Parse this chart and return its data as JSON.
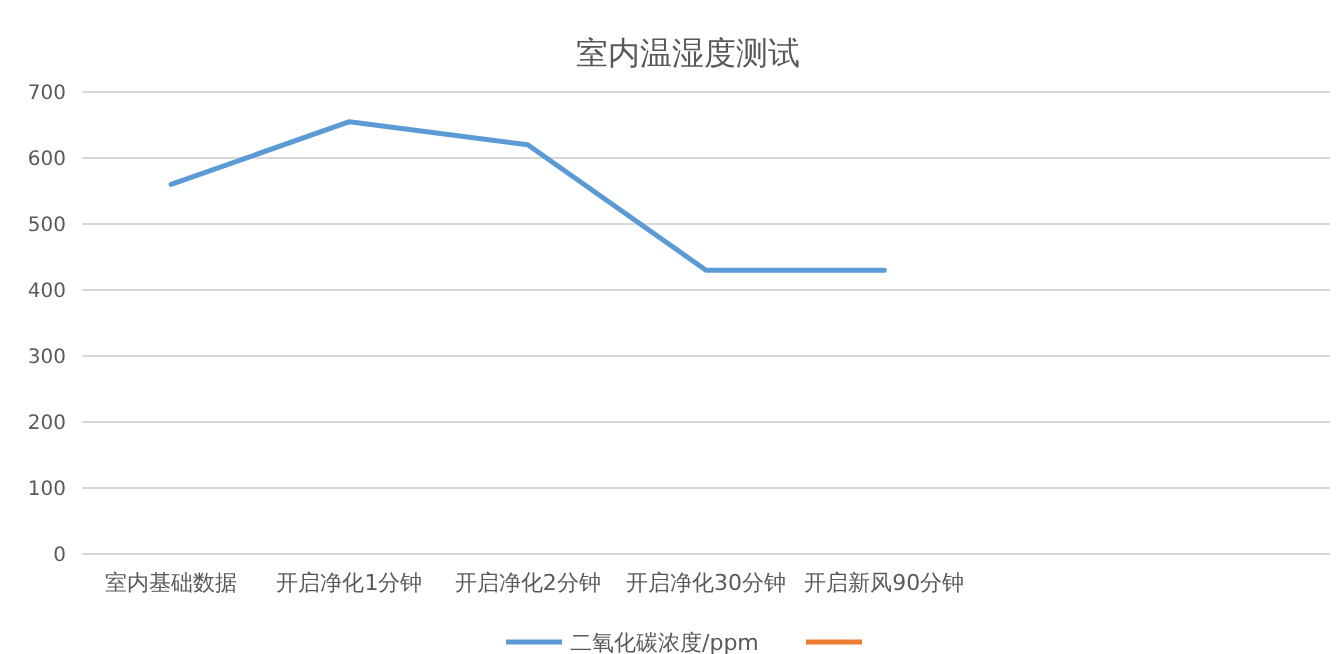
{
  "chart_data": {
    "type": "line",
    "title": "室内温湿度测试",
    "categories": [
      "室内基础数据",
      "开启净化1分钟",
      "开启净化2分钟",
      "开启净化30分钟",
      "开启新风90分钟",
      null,
      null
    ],
    "series": [
      {
        "name": "二氧化碳浓度/ppm",
        "color": "#5b9bd5",
        "values": [
          560,
          655,
          620,
          430,
          430,
          null,
          null
        ]
      },
      {
        "color": "#ed7d31",
        "values": [
          null,
          null,
          null,
          null,
          null,
          null,
          null
        ]
      }
    ],
    "ylim": [
      0,
      700
    ],
    "yticks": [
      0,
      100,
      200,
      300,
      400,
      500,
      600,
      700
    ],
    "grid": "y",
    "legend": "bottom",
    "marker": "none",
    "line_style": "solid"
  }
}
